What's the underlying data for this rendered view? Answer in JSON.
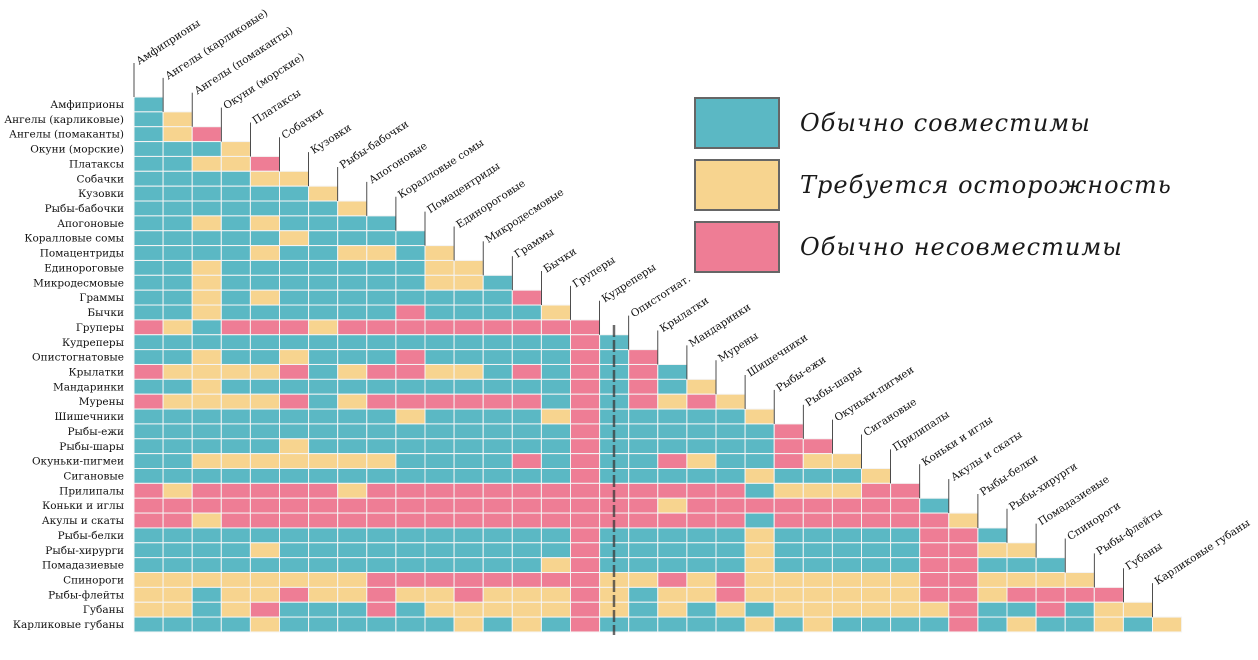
{
  "colors": {
    "compatible": "#5bb8c4",
    "caution": "#f7d48f",
    "incompatible": "#ee7d95"
  },
  "legend": [
    {
      "key": "compatible",
      "label": "Обычно совместимы"
    },
    {
      "key": "caution",
      "label": "Требуется осторожность"
    },
    {
      "key": "incompatible",
      "label": "Обычно несовместимы"
    }
  ],
  "chart_data": {
    "type": "heatmap",
    "species": [
      "Амфиприоны",
      "Ангелы (карликовые)",
      "Ангелы (помаканты)",
      "Окуни (морские)",
      "Платаксы",
      "Собачки",
      "Кузовки",
      "Рыбы-бабочки",
      "Апогоновые",
      "Коралловые сомы",
      "Помацентриды",
      "Единороговые",
      "Микродесмовые",
      "Граммы",
      "Бычки",
      "Груперы",
      "Кудреперы",
      "Опистогнатовые",
      "Крылатки",
      "Мандаринки",
      "Мурены",
      "Шишечники",
      "Рыбы-ежи",
      "Рыбы-шары",
      "Окуньки-пигмеи",
      "Сигановые",
      "Прилипалы",
      "Коньки и иглы",
      "Акулы и скаты",
      "Рыбы-белки",
      "Рыбы-хирурги",
      "Помадазиевые",
      "Спинороги",
      "Рыбы-флейты",
      "Губаны",
      "Карликовые губаны"
    ],
    "column_labels": [
      "Амфиприоны",
      "Ангелы (карликовые)",
      "Ангелы (помаканты)",
      "Окуни (морские)",
      "Платаксы",
      "Собачки",
      "Кузовки",
      "Рыбы-бабочки",
      "Апогоновые",
      "Коралловые сомы",
      "Помацентриды",
      "Единороговые",
      "Микродесмовые",
      "Граммы",
      "Бычки",
      "Груперы",
      "Кудреперы",
      "Опистогнат.",
      "Крылатки",
      "Мандаринки",
      "Мурены",
      "Шишечники",
      "Рыбы-ежи",
      "Рыбы-шары",
      "Окуньки-пигмеи",
      "Сигановые",
      "Прилипалы",
      "Коньки и иглы",
      "Акулы и скаты",
      "Рыбы-белки",
      "Рыбы-хирурги",
      "Помадазиевые",
      "Спинороги",
      "Рыбы-флейты",
      "Губаны",
      "Карликовые губаны"
    ],
    "legend_codes": {
      "C": "Обычно совместимы",
      "Y": "Требуется осторожность",
      "R": "Обычно несовместимы"
    },
    "rows": [
      "C",
      "CY",
      "CYR",
      "CCCY",
      "CCYYR",
      "CCCCYY",
      "CCCCCCY",
      "CCCCCCCY",
      "CCYCYCCCC",
      "CCCCCYCCCC",
      "CCCCYCCYYCY",
      "CCYCCCCCCCYY",
      "CCYCCCCCCCYYC",
      "CCYCYCCCCCCCCR",
      "CCYCCCCCCRCCCCY",
      "RYCRRRYRRRRRRRRR",
      "CCCCCCCCCCCCCCCRC",
      "CCYCCYCCCRCCCCCRCR",
      "RYYYYRCYRRYYCRCRCRC",
      "CCYCCCCCCCCCCCCRCRCY",
      "RYYYYRCYRRRRRRCRCRYRY",
      "CCCCCCCCCYCCCCYRCCCCCY",
      "CCCCCCCCCCCCCCCRCCCCCCR",
      "CCCCCYCCCCCCCCCRCCCCCCRR",
      "CCYYYYYYYCCCCRCRCCRYCCRYY",
      "CCCCCCCCCCCCCCCRCCCCCYCCCY",
      "RYRRRRRYRRRRRRRRRRRRRCYYYRR",
      "RRRRRRRRRRRRRRRRRRYRRRRRRRRC",
      "RRYRRRRRRRRRRRRRRRRRRCRRRRRRY",
      "CCCCCCCCCCCCCCCRCCCCCYCCCCCRRC",
      "CCCCYCCCCCCCCCCRCCCCCYCCCCCRRYY",
      "CCCCCCCCCCCCCCYRCCCCCYCCCCCRRCCC",
      "YYYYYYYYRRRRRRRRYYRYRYYYYYYRRYYYY",
      "YYCYYRYYRYYRYYYRYCYYRYYYYYYRRYRRRR",
      "YYCYRCCCRCYYYYYRYCYCYCYYYYYYRCCRCYY",
      "CCCCYCCCCCCYCYCRCCCCCYCYCCCCRCYCCYCY"
    ]
  }
}
